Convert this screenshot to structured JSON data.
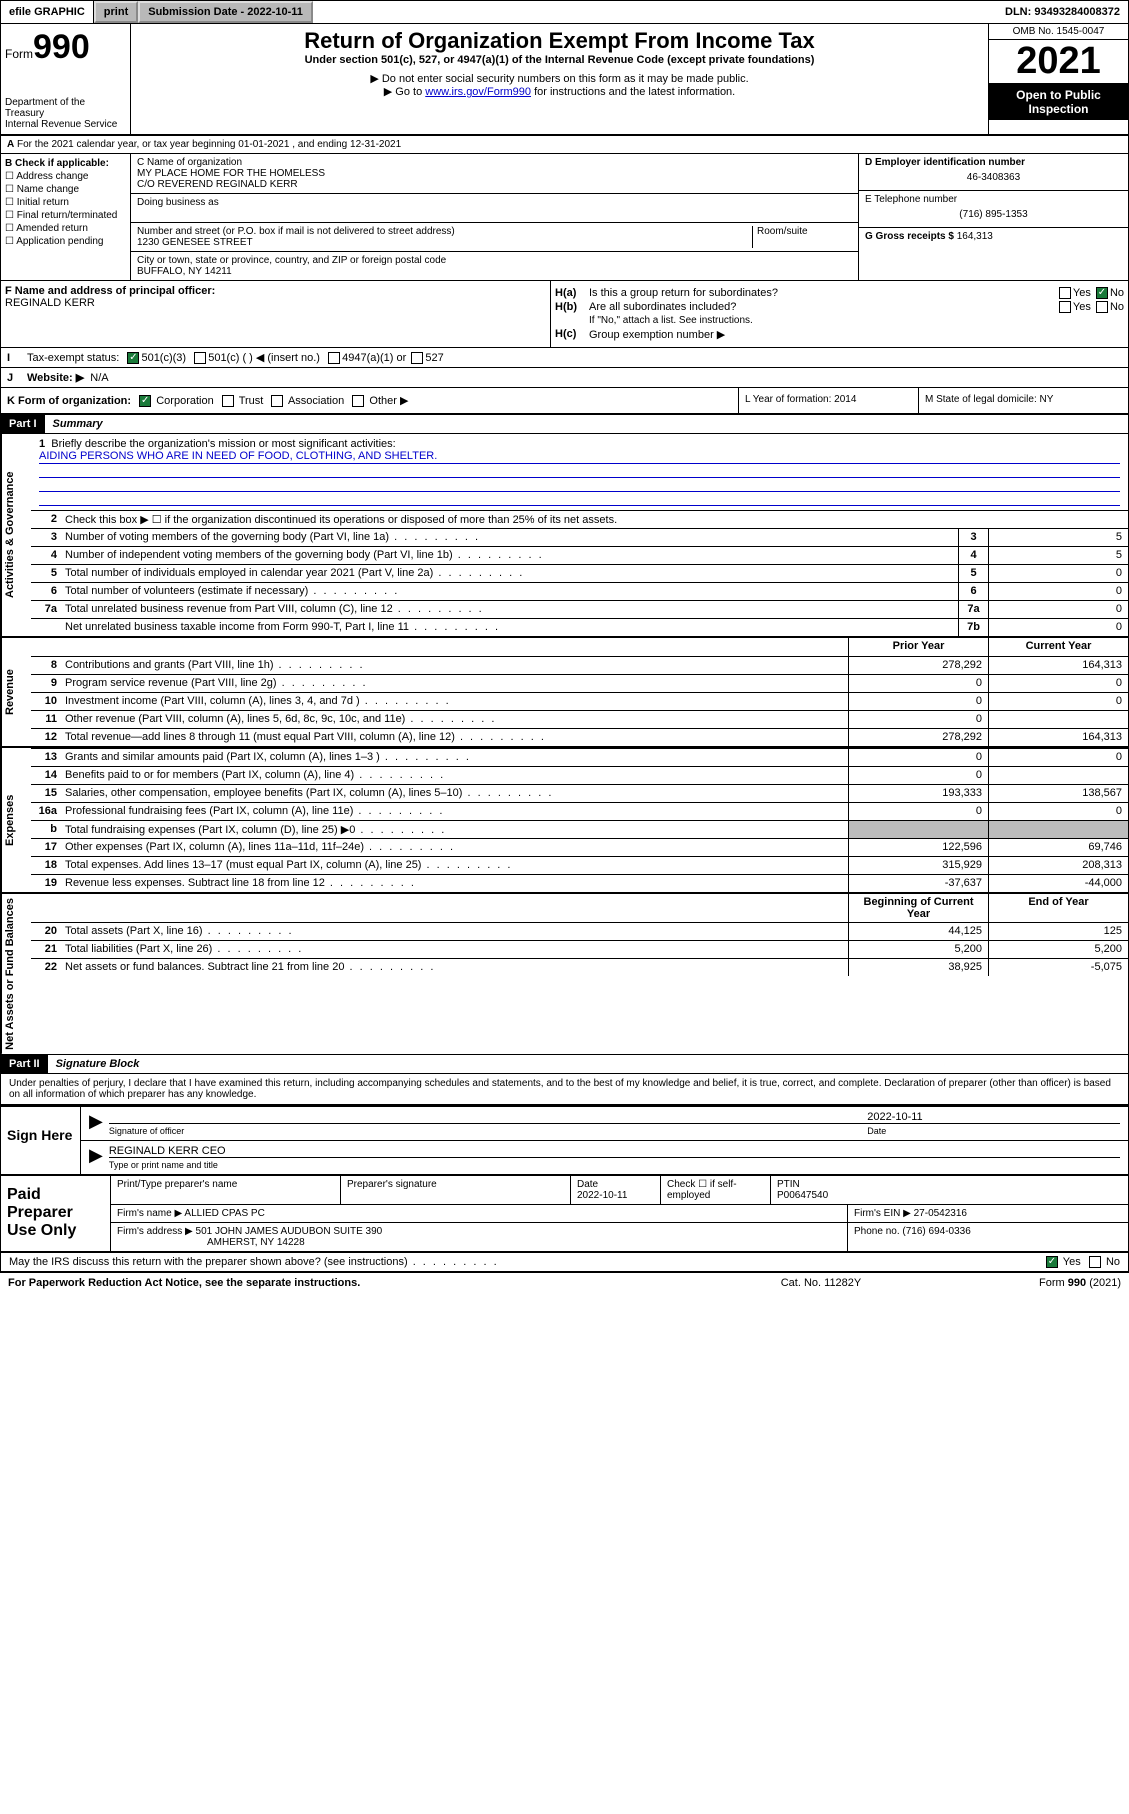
{
  "topbar": {
    "efile": "efile GRAPHIC",
    "print": "print",
    "subdate_label": "Submission Date - 2022-10-11",
    "dln": "DLN: 93493284008372"
  },
  "header": {
    "form_prefix": "Form",
    "form_num": "990",
    "title": "Return of Organization Exempt From Income Tax",
    "subtitle": "Under section 501(c), 527, or 4947(a)(1) of the Internal Revenue Code (except private foundations)",
    "note1": "▶ Do not enter social security numbers on this form as it may be made public.",
    "note2_pre": "▶ Go to ",
    "note2_link": "www.irs.gov/Form990",
    "note2_post": " for instructions and the latest information.",
    "dept": "Department of the Treasury\nInternal Revenue Service",
    "omb": "OMB No. 1545-0047",
    "year": "2021",
    "insp": "Open to Public Inspection"
  },
  "lineA": "For the 2021 calendar year, or tax year beginning 01-01-2021    , and ending 12-31-2021",
  "boxB": {
    "label": "B Check if applicable:",
    "opts": [
      "Address change",
      "Name change",
      "Initial return",
      "Final return/terminated",
      "Amended return",
      "Application pending"
    ]
  },
  "boxC": {
    "name_label": "C Name of organization",
    "name1": "MY PLACE HOME FOR THE HOMELESS",
    "name2": "C/O REVEREND REGINALD KERR",
    "dba_label": "Doing business as",
    "addr_label": "Number and street (or P.O. box if mail is not delivered to street address)",
    "room_label": "Room/suite",
    "addr": "1230 GENESEE STREET",
    "city_label": "City or town, state or province, country, and ZIP or foreign postal code",
    "city": "BUFFALO, NY  14211"
  },
  "boxD": {
    "label": "D Employer identification number",
    "val": "46-3408363"
  },
  "boxE": {
    "label": "E Telephone number",
    "val": "(716) 895-1353"
  },
  "boxG": {
    "label": "G Gross receipts $",
    "val": "164,313"
  },
  "boxF": {
    "label": "F  Name and address of principal officer:",
    "val": "REGINALD KERR"
  },
  "boxH": {
    "ha": "Is this a group return for subordinates?",
    "hb": "Are all subordinates included?",
    "hb_note": "If \"No,\" attach a list. See instructions.",
    "hc": "Group exemption number ▶"
  },
  "boxI": {
    "label": "Tax-exempt status:",
    "o1": "501(c)(3)",
    "o2": "501(c) (  ) ◀ (insert no.)",
    "o3": "4947(a)(1) or",
    "o4": "527"
  },
  "boxJ": {
    "label": "Website: ▶",
    "val": "N/A"
  },
  "boxK": {
    "label": "K Form of organization:",
    "o1": "Corporation",
    "o2": "Trust",
    "o3": "Association",
    "o4": "Other ▶"
  },
  "boxL": {
    "label": "L Year of formation:",
    "val": "2014"
  },
  "boxM": {
    "label": "M State of legal domicile:",
    "val": "NY"
  },
  "part1": {
    "hdr": "Part I",
    "title": "Summary",
    "mission_label": "Briefly describe the organization's mission or most significant activities:",
    "mission": "AIDING PERSONS WHO ARE IN NEED OF FOOD, CLOTHING, AND SHELTER.",
    "line2": "Check this box ▶ ☐  if the organization discontinued its operations or disposed of more than 25% of its net assets.",
    "side_gov": "Activities & Governance",
    "side_rev": "Revenue",
    "side_exp": "Expenses",
    "side_net": "Net Assets or Fund Balances",
    "col_prior": "Prior Year",
    "col_curr": "Current Year",
    "col_beg": "Beginning of Current Year",
    "col_end": "End of Year",
    "rows_gov": [
      {
        "n": "3",
        "d": "Number of voting members of the governing body (Part VI, line 1a)",
        "box": "3",
        "v": "5"
      },
      {
        "n": "4",
        "d": "Number of independent voting members of the governing body (Part VI, line 1b)",
        "box": "4",
        "v": "5"
      },
      {
        "n": "5",
        "d": "Total number of individuals employed in calendar year 2021 (Part V, line 2a)",
        "box": "5",
        "v": "0"
      },
      {
        "n": "6",
        "d": "Total number of volunteers (estimate if necessary)",
        "box": "6",
        "v": "0"
      },
      {
        "n": "7a",
        "d": "Total unrelated business revenue from Part VIII, column (C), line 12",
        "box": "7a",
        "v": "0"
      },
      {
        "n": "",
        "d": "Net unrelated business taxable income from Form 990-T, Part I, line 11",
        "box": "7b",
        "v": "0"
      }
    ],
    "rows_rev": [
      {
        "n": "8",
        "d": "Contributions and grants (Part VIII, line 1h)",
        "p": "278,292",
        "c": "164,313"
      },
      {
        "n": "9",
        "d": "Program service revenue (Part VIII, line 2g)",
        "p": "0",
        "c": "0"
      },
      {
        "n": "10",
        "d": "Investment income (Part VIII, column (A), lines 3, 4, and 7d )",
        "p": "0",
        "c": "0"
      },
      {
        "n": "11",
        "d": "Other revenue (Part VIII, column (A), lines 5, 6d, 8c, 9c, 10c, and 11e)",
        "p": "0",
        "c": ""
      },
      {
        "n": "12",
        "d": "Total revenue—add lines 8 through 11 (must equal Part VIII, column (A), line 12)",
        "p": "278,292",
        "c": "164,313"
      }
    ],
    "rows_exp": [
      {
        "n": "13",
        "d": "Grants and similar amounts paid (Part IX, column (A), lines 1–3 )",
        "p": "0",
        "c": "0"
      },
      {
        "n": "14",
        "d": "Benefits paid to or for members (Part IX, column (A), line 4)",
        "p": "0",
        "c": ""
      },
      {
        "n": "15",
        "d": "Salaries, other compensation, employee benefits (Part IX, column (A), lines 5–10)",
        "p": "193,333",
        "c": "138,567"
      },
      {
        "n": "16a",
        "d": "Professional fundraising fees (Part IX, column (A), line 11e)",
        "p": "0",
        "c": "0"
      },
      {
        "n": "b",
        "d": "Total fundraising expenses (Part IX, column (D), line 25) ▶0",
        "p": "",
        "c": "",
        "shade": true
      },
      {
        "n": "17",
        "d": "Other expenses (Part IX, column (A), lines 11a–11d, 11f–24e)",
        "p": "122,596",
        "c": "69,746"
      },
      {
        "n": "18",
        "d": "Total expenses. Add lines 13–17 (must equal Part IX, column (A), line 25)",
        "p": "315,929",
        "c": "208,313"
      },
      {
        "n": "19",
        "d": "Revenue less expenses. Subtract line 18 from line 12",
        "p": "-37,637",
        "c": "-44,000"
      }
    ],
    "rows_net": [
      {
        "n": "20",
        "d": "Total assets (Part X, line 16)",
        "p": "44,125",
        "c": "125"
      },
      {
        "n": "21",
        "d": "Total liabilities (Part X, line 26)",
        "p": "5,200",
        "c": "5,200"
      },
      {
        "n": "22",
        "d": "Net assets or fund balances. Subtract line 21 from line 20",
        "p": "38,925",
        "c": "-5,075"
      }
    ]
  },
  "part2": {
    "hdr": "Part II",
    "title": "Signature Block",
    "decl": "Under penalties of perjury, I declare that I have examined this return, including accompanying schedules and statements, and to the best of my knowledge and belief, it is true, correct, and complete. Declaration of preparer (other than officer) is based on all information of which preparer has any knowledge.",
    "sign_here": "Sign Here",
    "sig_officer": "Signature of officer",
    "sig_date": "2022-10-11",
    "date_label": "Date",
    "officer_name": "REGINALD KERR CEO",
    "name_label": "Type or print name and title"
  },
  "prep": {
    "label": "Paid Preparer Use Only",
    "h1": "Print/Type preparer's name",
    "h2": "Preparer's signature",
    "h3": "Date",
    "h3v": "2022-10-11",
    "h4": "Check ☐ if self-employed",
    "h5": "PTIN",
    "h5v": "P00647540",
    "firm_name_l": "Firm's name    ▶",
    "firm_name": "ALLIED CPAS PC",
    "firm_ein_l": "Firm's EIN ▶",
    "firm_ein": "27-0542316",
    "firm_addr_l": "Firm's address ▶",
    "firm_addr1": "501 JOHN JAMES AUDUBON SUITE 390",
    "firm_addr2": "AMHERST, NY  14228",
    "phone_l": "Phone no.",
    "phone": "(716) 694-0336"
  },
  "may": {
    "q": "May the IRS discuss this return with the preparer shown above? (see instructions)",
    "yes": "Yes",
    "no": "No"
  },
  "footer": {
    "f1": "For Paperwork Reduction Act Notice, see the separate instructions.",
    "f2": "Cat. No. 11282Y",
    "f3": "Form 990 (2021)"
  }
}
